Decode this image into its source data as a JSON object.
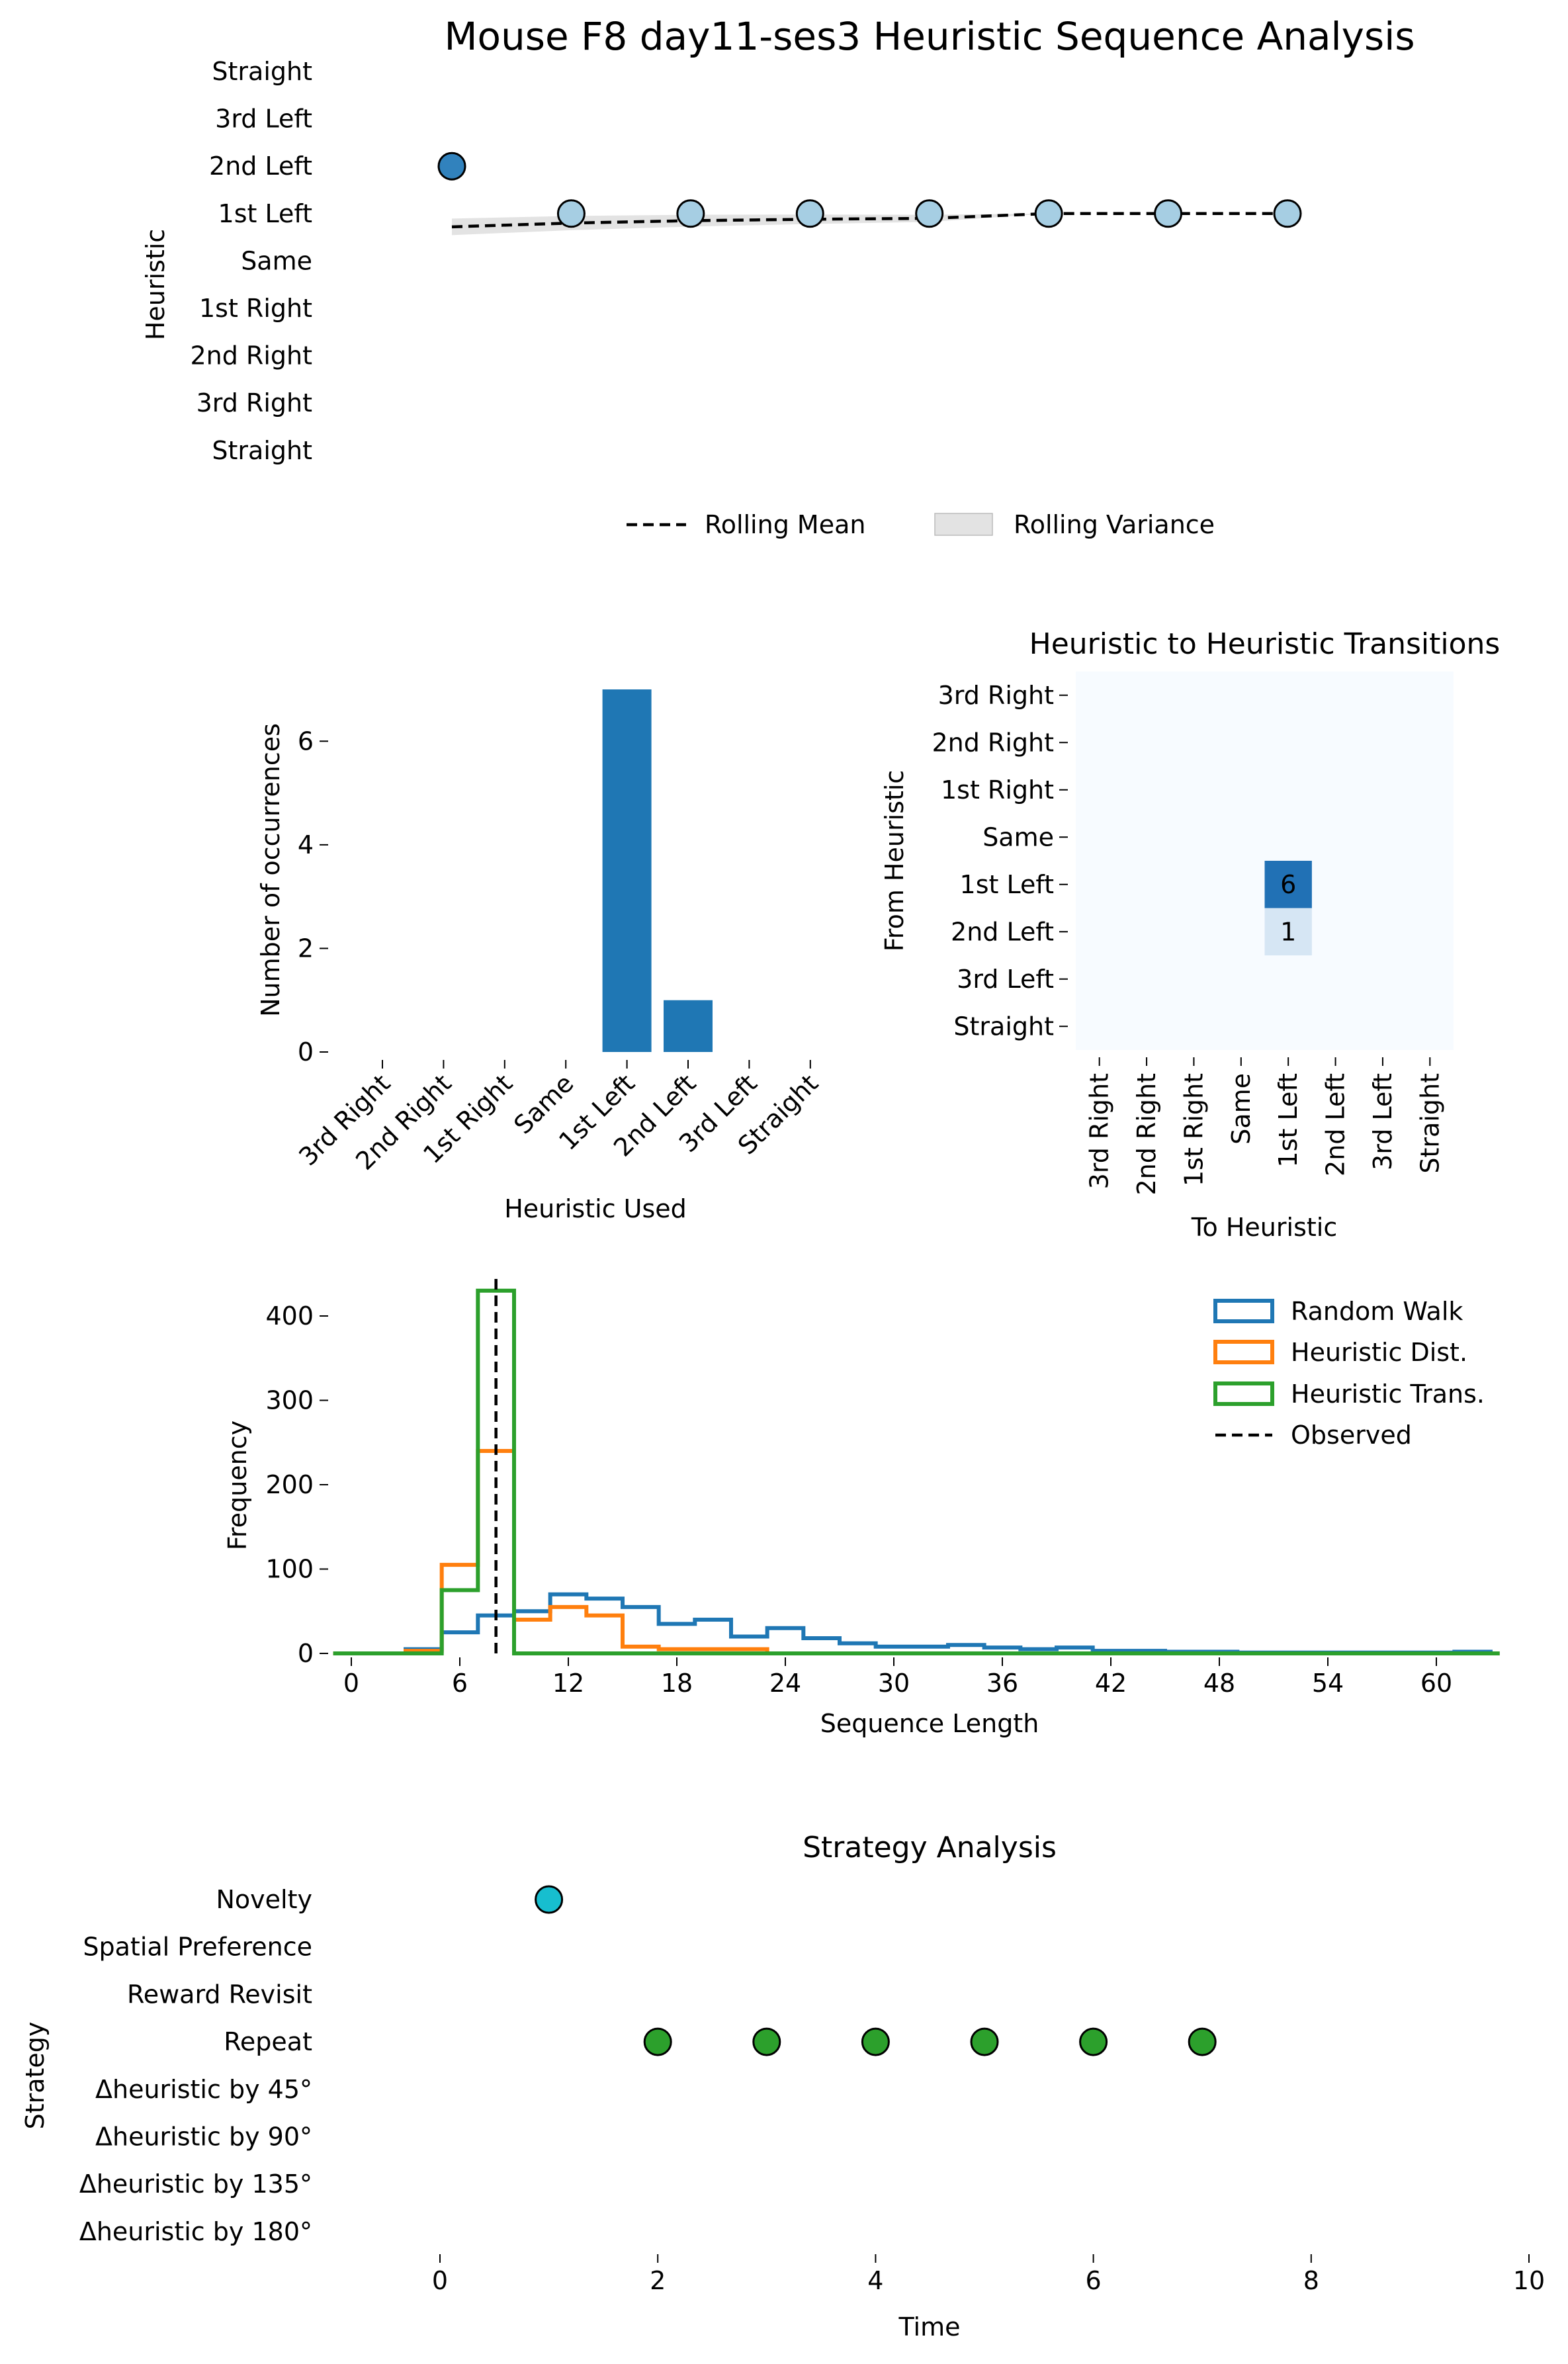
{
  "figure": {
    "title": "Mouse F8 day11-ses3 Heuristic Sequence Analysis"
  },
  "colors": {
    "blue": "#1f77b4",
    "orange": "#ff7f0e",
    "green": "#2ca02c",
    "cyan": "#17becf",
    "dark_point": "#3182bd",
    "light_point": "#a6cee3",
    "heat_base": "#f7fbff",
    "heat_6": "#2171b5",
    "heat_1": "#d6e6f4",
    "variance": "#d9d9d9"
  },
  "chart_data": [
    {
      "type": "line",
      "title": "",
      "ylabel": "Heuristic",
      "yticks": [
        "Straight",
        "3rd Left",
        "2nd Left",
        "1st Left",
        "Same",
        "1st Right",
        "2nd Right",
        "3rd Right",
        "Straight"
      ],
      "x": [
        0,
        1,
        2,
        3,
        4,
        5,
        6,
        7
      ],
      "points": [
        {
          "x": 0,
          "y": "2nd Left"
        },
        {
          "x": 1,
          "y": "1st Left"
        },
        {
          "x": 2,
          "y": "1st Left"
        },
        {
          "x": 3,
          "y": "1st Left"
        },
        {
          "x": 4,
          "y": "1st Left"
        },
        {
          "x": 5,
          "y": "1st Left"
        },
        {
          "x": 6,
          "y": "1st Left"
        },
        {
          "x": 7,
          "y": "1st Left"
        }
      ],
      "rolling_mean_index": [
        3.28,
        3.2,
        3.15,
        3.12,
        3.1,
        3.0,
        3.0,
        3.0
      ],
      "rolling_variance_band": [
        0.35,
        0.3,
        0.25,
        0.2,
        0.15,
        0.0,
        0.0,
        0.0
      ],
      "legend": [
        "Rolling Mean",
        "Rolling Variance"
      ],
      "legend_placement": "bottom-center"
    },
    {
      "type": "bar",
      "title": "",
      "xlabel": "Heuristic Used",
      "ylabel": "Number of occurrences",
      "categories": [
        "3rd Right",
        "2nd Right",
        "1st Right",
        "Same",
        "1st Left",
        "2nd Left",
        "3rd Left",
        "Straight"
      ],
      "values": [
        0,
        0,
        0,
        0,
        7,
        1,
        0,
        0
      ],
      "yticks": [
        0,
        2,
        4,
        6
      ],
      "ylim": [
        0,
        7.3
      ]
    },
    {
      "type": "heatmap",
      "title": "Heuristic to Heuristic Transitions",
      "xlabel": "To Heuristic",
      "ylabel": "From Heuristic",
      "rows": [
        "3rd Right",
        "2nd Right",
        "1st Right",
        "Same",
        "1st Left",
        "2nd Left",
        "3rd Left",
        "Straight"
      ],
      "cols": [
        "3rd Right",
        "2nd Right",
        "1st Right",
        "Same",
        "1st Left",
        "2nd Left",
        "3rd Left",
        "Straight"
      ],
      "cells": [
        {
          "row": "1st Left",
          "col": "1st Left",
          "value": 6,
          "label": "6"
        },
        {
          "row": "2nd Left",
          "col": "1st Left",
          "value": 1,
          "label": "1"
        }
      ]
    },
    {
      "type": "histogram",
      "title": "",
      "xlabel": "Sequence Length",
      "ylabel": "Frequency",
      "xticks": [
        0,
        6,
        12,
        18,
        24,
        30,
        36,
        42,
        48,
        54,
        60
      ],
      "yticks": [
        0,
        100,
        200,
        300,
        400
      ],
      "xlim": [
        -1,
        63.5
      ],
      "ylim": [
        0,
        450
      ],
      "bin_width": 2,
      "series": [
        {
          "name": "Random Walk",
          "start": 3,
          "values": [
            5,
            25,
            45,
            50,
            70,
            65,
            55,
            35,
            40,
            20,
            30,
            18,
            12,
            8,
            8,
            10,
            7,
            5,
            7,
            3,
            3,
            2,
            2,
            1,
            1,
            1,
            1,
            1,
            1,
            2
          ]
        },
        {
          "name": "Heuristic Dist.",
          "start": 3,
          "values": [
            3,
            105,
            240,
            40,
            55,
            45,
            8,
            5,
            5,
            5
          ]
        },
        {
          "name": "Heuristic Trans.",
          "start": 5,
          "values": [
            75,
            430
          ]
        }
      ],
      "observed": {
        "name": "Observed",
        "x": 8
      },
      "legend": [
        "Random Walk",
        "Heuristic Dist.",
        "Heuristic Trans.",
        "Observed"
      ],
      "legend_placement": "top-right"
    },
    {
      "type": "scatter",
      "title": "Strategy Analysis",
      "xlabel": "Time",
      "ylabel": "Strategy",
      "yticks": [
        "Novelty",
        "Spatial Preference",
        "Reward Revisit",
        "Repeat",
        "Δheuristic by 45°",
        "Δheuristic by 90°",
        "Δheuristic by 135°",
        "Δheuristic by 180°"
      ],
      "xticks": [
        0,
        2,
        4,
        6,
        8,
        10
      ],
      "xlim": [
        -0.8,
        10
      ],
      "points": [
        {
          "x": 1,
          "y": "Novelty"
        },
        {
          "x": 2,
          "y": "Repeat"
        },
        {
          "x": 3,
          "y": "Repeat"
        },
        {
          "x": 4,
          "y": "Repeat"
        },
        {
          "x": 5,
          "y": "Repeat"
        },
        {
          "x": 6,
          "y": "Repeat"
        },
        {
          "x": 7,
          "y": "Repeat"
        }
      ]
    }
  ]
}
